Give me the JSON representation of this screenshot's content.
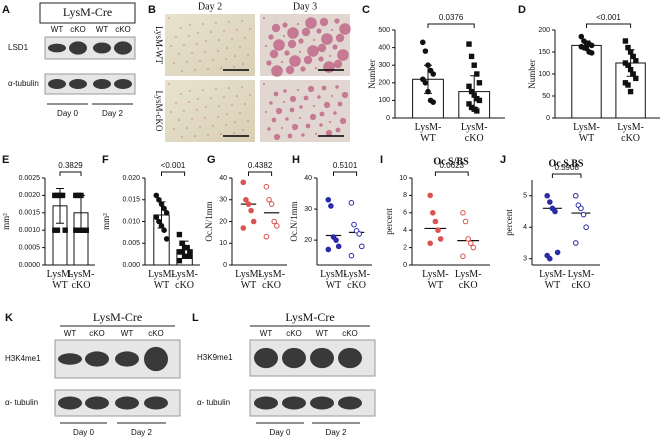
{
  "panels": [
    "A",
    "B",
    "C",
    "D",
    "E",
    "F",
    "G",
    "H",
    "I",
    "J",
    "K",
    "L"
  ],
  "blot_a": {
    "title": "LysM-Cre",
    "lanes": [
      "WT",
      "cKO",
      "WT",
      "cKO"
    ],
    "bands": [
      "LSD1",
      "α-tubulin"
    ],
    "groups": [
      "Day 0",
      "Day 2"
    ]
  },
  "micrographs": {
    "columns": [
      "Day 2",
      "Day 3"
    ],
    "rows": [
      "LysM-WT",
      "LysM-cKO"
    ]
  },
  "blot_k": {
    "title": "LysM-Cre",
    "lanes": [
      "WT",
      "cKO",
      "WT",
      "cKO"
    ],
    "bands": [
      "H3K4me1",
      "α- tubulin"
    ],
    "groups": [
      "Day 0",
      "Day 2"
    ]
  },
  "blot_l": {
    "title": "LysM-Cre",
    "lanes": [
      "WT",
      "cKO",
      "WT",
      "cKO"
    ],
    "bands": [
      "H3K9me1",
      "α- tubulin"
    ],
    "groups": [
      "Day 0",
      "Day 2"
    ]
  },
  "chart_data": [
    {
      "type": "bar",
      "ylabel": "Number",
      "annotation": "0.0376",
      "categories": [
        "LysM-WT",
        "LysM-cKO"
      ],
      "values": [
        220,
        150
      ],
      "errors": [
        80,
        90
      ],
      "markers": [
        "circle",
        "square"
      ],
      "color": "#111111",
      "points": [
        [
          430,
          380,
          300,
          270,
          250,
          220,
          200,
          150,
          100,
          90
        ],
        [
          420,
          350,
          300,
          250,
          200,
          180,
          150,
          130,
          110,
          100,
          80,
          60,
          50,
          40
        ]
      ],
      "ylim": [
        0,
        500
      ],
      "yticks": [
        0,
        100,
        200,
        300,
        400,
        500
      ]
    },
    {
      "type": "bar",
      "ylabel": "Number",
      "annotation": "<0.001",
      "categories": [
        "LysM-WT",
        "LysM-cKO"
      ],
      "values": [
        165,
        125
      ],
      "errors": [
        10,
        30
      ],
      "markers": [
        "circle",
        "square"
      ],
      "color": "#111111",
      "points": [
        [
          185,
          175,
          170,
          168,
          165,
          162,
          160,
          158,
          150,
          148
        ],
        [
          175,
          160,
          150,
          140,
          130,
          125,
          120,
          110,
          100,
          90,
          80,
          75,
          60
        ]
      ],
      "ylim": [
        0,
        200
      ],
      "yticks": [
        0,
        50,
        100,
        150,
        200
      ]
    },
    {
      "type": "bar",
      "ylabel": "mm²",
      "annotation": "0.3829",
      "categories": [
        "LysM-WT",
        "LysM-cKO"
      ],
      "values": [
        0.0017,
        0.0015
      ],
      "errors": [
        0.0005,
        0.0005
      ],
      "markers": [
        "square",
        "square"
      ],
      "color": "#111111",
      "points": [
        [
          0.002,
          0.002,
          0.002,
          0.002,
          0.001,
          0.001,
          0.001
        ],
        [
          0.002,
          0.002,
          0.002,
          0.001,
          0.001,
          0.001,
          0.001,
          0.001,
          0.001,
          0.001
        ]
      ],
      "ylim": [
        0,
        0.0025
      ],
      "yticks": [
        {
          "value": 0,
          "label": "0.0000"
        },
        {
          "value": 0.0005,
          "label": "0.0005"
        },
        {
          "value": 0.001,
          "label": "0.0010"
        },
        {
          "value": 0.0015,
          "label": "0.0015"
        },
        {
          "value": 0.002,
          "label": "0.0020"
        },
        {
          "value": 0.0025,
          "label": "0.0025"
        }
      ]
    },
    {
      "type": "bar",
      "ylabel": "mm²",
      "annotation": "<0.001",
      "categories": [
        "LysM-WT",
        "LysM-cKO"
      ],
      "values": [
        0.0115,
        0.0035
      ],
      "errors": [
        0.003,
        0.002
      ],
      "markers": [
        "circle",
        "square"
      ],
      "color": "#111111",
      "points": [
        [
          0.016,
          0.015,
          0.014,
          0.013,
          0.012,
          0.011,
          0.01,
          0.009,
          0.008,
          0.006
        ],
        [
          0.007,
          0.005,
          0.004,
          0.004,
          0.003,
          0.003,
          0.003,
          0.002,
          0.002,
          0.002,
          0.001
        ]
      ],
      "ylim": [
        0,
        0.02
      ],
      "yticks": [
        {
          "value": 0,
          "label": "0.000"
        },
        {
          "value": 0.005,
          "label": "0.005"
        },
        {
          "value": 0.01,
          "label": "0.010"
        },
        {
          "value": 0.015,
          "label": "0.015"
        },
        {
          "value": 0.02,
          "label": "0.020"
        }
      ]
    },
    {
      "type": "dot",
      "ylabel": "Oc.N/1mm",
      "annotation": "0.4382",
      "categories": [
        "LysM-WT",
        "LysM-cKO"
      ],
      "values": [
        28,
        24
      ],
      "filled": [
        true,
        false
      ],
      "color": "#d9534f",
      "points": [
        [
          38,
          30,
          28,
          25,
          20,
          17
        ],
        [
          36,
          30,
          28,
          20,
          18,
          13
        ]
      ],
      "ylim": [
        0,
        40
      ],
      "yticks": [
        0,
        10,
        20,
        30,
        40
      ]
    },
    {
      "type": "dot",
      "ylabel": "Oc.N/1mm",
      "annotation": "0.5101",
      "categories": [
        "LysM-WT",
        "LysM-cKO"
      ],
      "values": [
        21.5,
        22.5
      ],
      "filled": [
        true,
        false
      ],
      "color": "#2b2ba8",
      "points": [
        [
          33,
          31,
          21,
          20,
          18,
          17
        ],
        [
          32,
          25,
          23,
          22,
          18,
          15
        ]
      ],
      "ylim": [
        12,
        40
      ],
      "yticks": [
        20,
        30,
        40
      ]
    },
    {
      "type": "dot",
      "title": "Oc.S/BS",
      "ylabel": "percent",
      "annotation": "0.0623",
      "categories": [
        "LysM-WT",
        "LysM-cKO"
      ],
      "values": [
        4.2,
        2.8
      ],
      "filled": [
        true,
        false
      ],
      "color": "#d9534f",
      "points": [
        [
          8,
          6,
          5,
          4,
          3,
          2.5
        ],
        [
          6,
          5,
          3,
          2.5,
          2,
          1
        ]
      ],
      "ylim": [
        0,
        10
      ],
      "yticks": [
        0,
        2,
        4,
        6,
        8,
        10
      ]
    },
    {
      "type": "dot",
      "title": "Oc.S.BS",
      "ylabel": "percent",
      "annotation": "0.5908",
      "categories": [
        "LysM-WT",
        "LysM-cKO"
      ],
      "values": [
        4.6,
        4.45
      ],
      "filled": [
        true,
        false
      ],
      "color": "#2b2ba8",
      "points": [
        [
          5.0,
          4.8,
          4.6,
          4.5,
          3.2,
          3.1,
          3.0
        ],
        [
          5.0,
          4.7,
          4.6,
          4.4,
          4.0,
          3.5
        ]
      ],
      "ylim": [
        2.8,
        5.5
      ],
      "yticks": [
        3,
        4,
        5
      ]
    }
  ]
}
